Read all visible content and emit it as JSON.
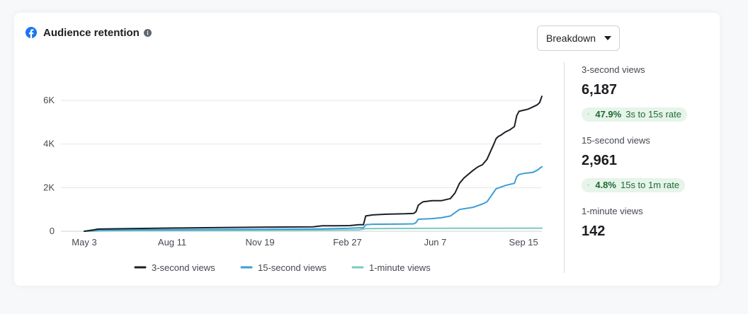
{
  "header": {
    "title": "Audience retention"
  },
  "breakdown": {
    "label": "Breakdown"
  },
  "stats": [
    {
      "label": "3-second views",
      "value": "6,187"
    },
    {
      "label": "15-second views",
      "value": "2,961"
    },
    {
      "label": "1-minute views",
      "value": "142"
    }
  ],
  "rates": [
    {
      "percent": "47.9%",
      "label": "3s to 15s rate"
    },
    {
      "percent": "4.8%",
      "label": "15s to 1m rate"
    }
  ],
  "colors": {
    "three_second": "#1c2026",
    "fifteen_second": "#3b9ed6",
    "one_minute": "#7cc8c0",
    "gridline": "#e4e6eb",
    "facebook_blue": "#1877f2"
  },
  "chart_data": {
    "type": "line",
    "title": "",
    "xlabel": "",
    "ylabel": "",
    "ylim": [
      0,
      6000
    ],
    "y_ticks": [
      0,
      2000,
      4000,
      6000
    ],
    "y_tick_labels": [
      "0",
      "2K",
      "4K",
      "6K"
    ],
    "xlim": [
      0,
      100
    ],
    "x_ticks": [
      0,
      19.2,
      38.4,
      57.5,
      76.7,
      96
    ],
    "x_tick_labels": [
      "May 3",
      "Aug 11",
      "Nov 19",
      "Feb 27",
      "Jun 7",
      "Sep 15"
    ],
    "grid": true,
    "legend_position": "bottom",
    "series": [
      {
        "name": "3-second views",
        "color": "#1c2026",
        "x": [
          0,
          2,
          3,
          10,
          20,
          30,
          40,
          50,
          52,
          55,
          58,
          60,
          61,
          61.5,
          63,
          66,
          70,
          72,
          72.5,
          73,
          74,
          76,
          78,
          80,
          81,
          82,
          83,
          85,
          86,
          87,
          88,
          89.5,
          90,
          90.5,
          91,
          92,
          93,
          94,
          94.5,
          95,
          96,
          97,
          98,
          99,
          99.5,
          100
        ],
        "y": [
          0,
          60,
          100,
          120,
          150,
          170,
          190,
          200,
          250,
          250,
          260,
          300,
          300,
          700,
          750,
          780,
          800,
          820,
          900,
          1200,
          1350,
          1400,
          1400,
          1500,
          1750,
          2200,
          2450,
          2800,
          2950,
          3050,
          3300,
          4000,
          4250,
          4350,
          4400,
          4550,
          4650,
          4800,
          5300,
          5500,
          5550,
          5600,
          5700,
          5800,
          5900,
          6187
        ]
      },
      {
        "name": "15-second views",
        "color": "#3b9ed6",
        "x": [
          0,
          3,
          10,
          20,
          30,
          40,
          50,
          52,
          58,
          60,
          61,
          61.5,
          63,
          70,
          72,
          72.5,
          73,
          76,
          78,
          80,
          81,
          82,
          85,
          87,
          88,
          89.5,
          90,
          92,
          94,
          94.5,
          95,
          96,
          98,
          99,
          100
        ],
        "y": [
          0,
          50,
          60,
          70,
          80,
          90,
          100,
          110,
          140,
          160,
          160,
          300,
          320,
          330,
          340,
          400,
          550,
          580,
          620,
          700,
          850,
          1000,
          1100,
          1250,
          1350,
          1800,
          1950,
          2100,
          2200,
          2500,
          2600,
          2650,
          2700,
          2800,
          2961
        ]
      },
      {
        "name": "1-minute views",
        "color": "#7cc8c0",
        "x": [
          0,
          5,
          20,
          40,
          50,
          60,
          61.5,
          70,
          80,
          90,
          100
        ],
        "y": [
          0,
          20,
          30,
          40,
          50,
          60,
          120,
          130,
          135,
          140,
          142
        ]
      }
    ]
  }
}
